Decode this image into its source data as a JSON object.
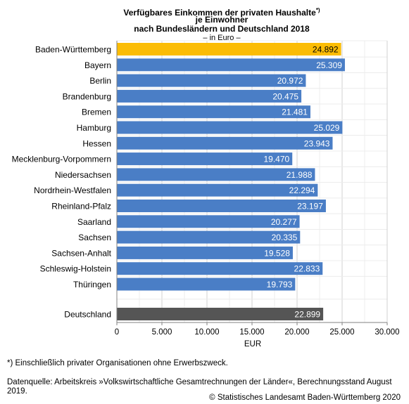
{
  "title_line1": "Verfügbares Einkommen der privaten Haushalte",
  "title_sup": "*)",
  "title_line2": "je Einwohner",
  "title_line3": "nach Bundesländern und Deutschland 2018",
  "unit_note": "– in Euro –",
  "footnote": "*) Einschließlich privater Organisationen ohne Erwerbszweck.",
  "source": "Datenquelle: Arbeitskreis »Volkswirtschaftliche Gesamtrechnungen der Länder«, Berechnungsstand August 2019.",
  "copyright": "© Statistisches Landesamt Baden-Württemberg 2020",
  "colors": {
    "highlight": "#fbbc05",
    "default": "#4a7ec6",
    "total": "#555555"
  },
  "chart_data": {
    "type": "bar",
    "orientation": "horizontal",
    "categories": [
      "Baden-Württemberg",
      "Bayern",
      "Berlin",
      "Brandenburg",
      "Bremen",
      "Hamburg",
      "Hessen",
      "Mecklenburg-Vorpommern",
      "Niedersachsen",
      "Nordrhein-Westfalen",
      "Rheinland-Pfalz",
      "Saarland",
      "Sachsen",
      "Sachsen-Anhalt",
      "Schleswig-Holstein",
      "Thüringen",
      "Deutschland"
    ],
    "values": [
      24892,
      25309,
      20972,
      20475,
      21481,
      25029,
      23943,
      19470,
      21988,
      22294,
      23197,
      20277,
      20335,
      19528,
      22833,
      19793,
      22899
    ],
    "value_labels": [
      "24.892",
      "25.309",
      "20.972",
      "20.475",
      "21.481",
      "25.029",
      "23.943",
      "19.470",
      "21.988",
      "22.294",
      "23.197",
      "20.277",
      "20.335",
      "19.528",
      "22.833",
      "19.793",
      "22.899"
    ],
    "xlabel": "EUR",
    "xlim": [
      0,
      30000
    ],
    "xticks": [
      0,
      5000,
      10000,
      15000,
      20000,
      25000,
      30000
    ],
    "xtick_labels": [
      "0",
      "5.000",
      "10.000",
      "15.000",
      "20.000",
      "25.000",
      "30.000"
    ],
    "grid": true,
    "highlight": "Baden-Württemberg",
    "total": "Deutschland"
  }
}
